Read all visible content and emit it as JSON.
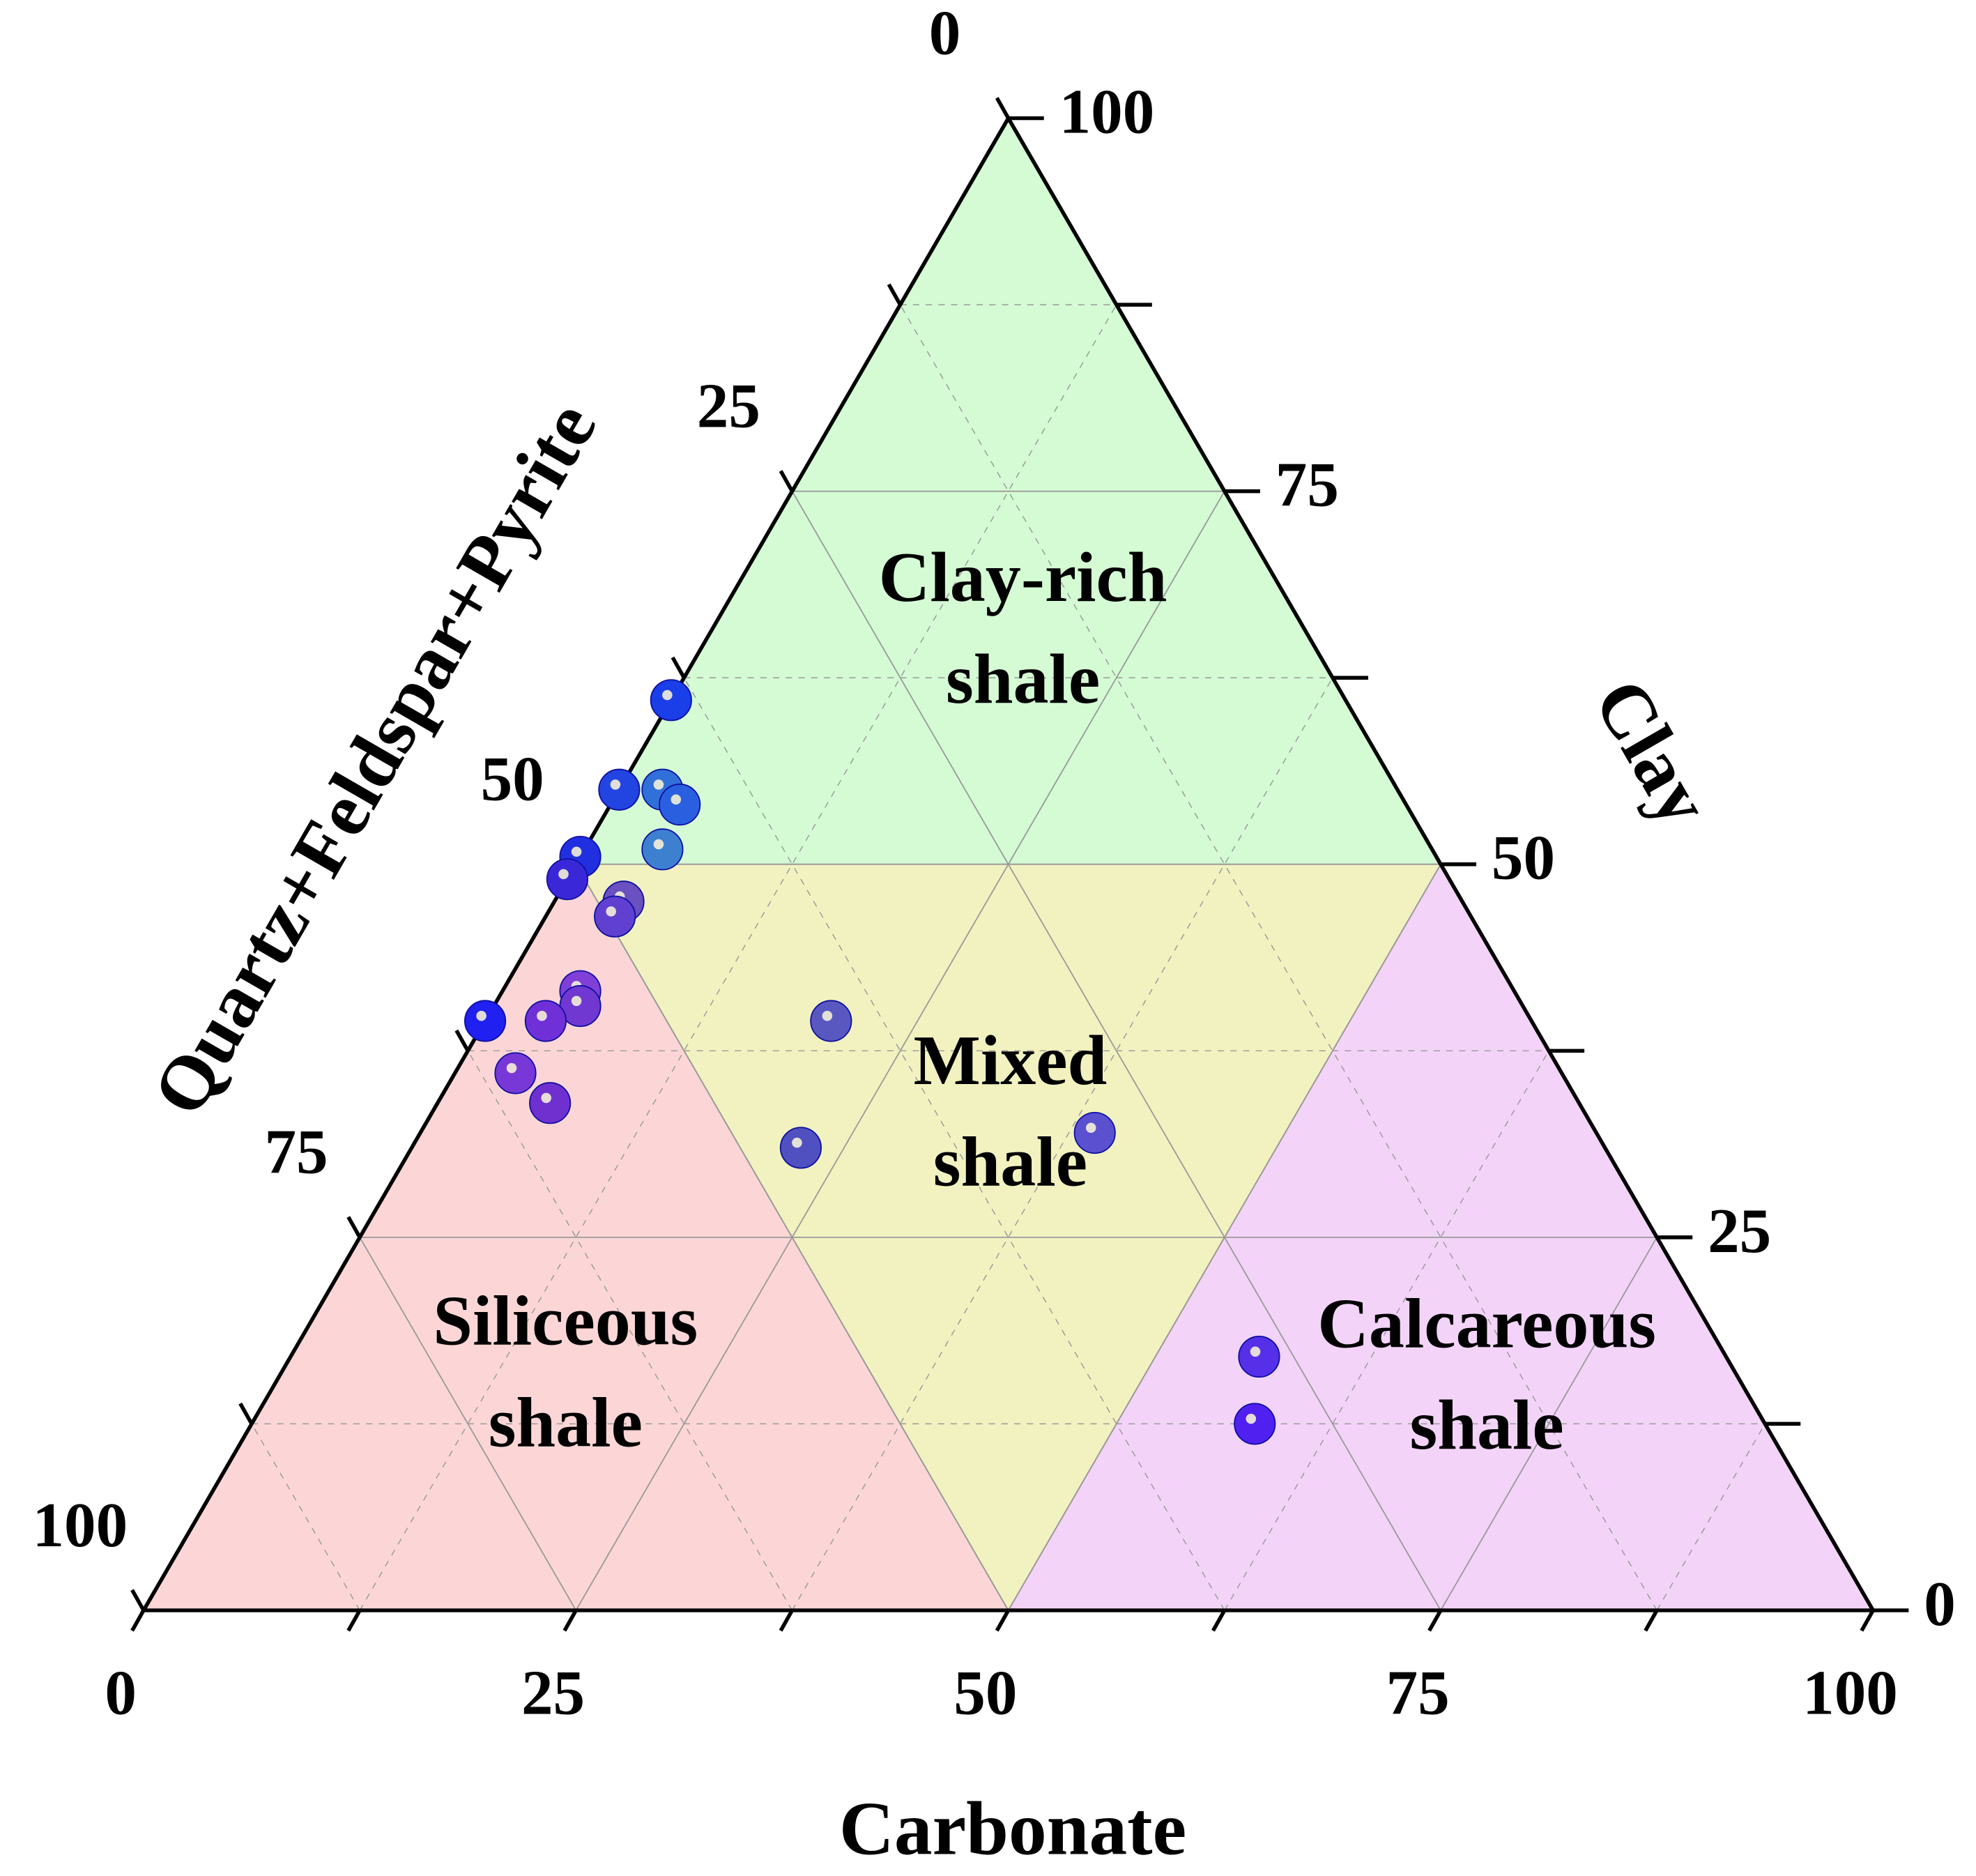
{
  "chart_data": {
    "type": "ternary",
    "axes": {
      "carbonate": {
        "title": "Carbonate",
        "lim": [
          0,
          100
        ],
        "ticks": [
          0,
          25,
          50,
          75,
          100
        ]
      },
      "clay": {
        "title": "Clay",
        "lim": [
          0,
          100
        ],
        "ticks": [
          0,
          25,
          50,
          75,
          100
        ]
      },
      "qfp": {
        "title": "Quartz+Feldspar+Pyrite",
        "lim": [
          0,
          100
        ],
        "ticks": [
          0,
          25,
          50,
          75,
          100
        ]
      }
    },
    "minor_ticks": [
      12.5,
      37.5,
      62.5,
      87.5
    ],
    "grid": true,
    "threshold": 50,
    "regions": [
      {
        "axis": "clay",
        "label": [
          "Clay-rich",
          "shale"
        ],
        "color": "#d4fbd4"
      },
      {
        "axis": "qfp",
        "label": [
          "Siliceous",
          "shale"
        ],
        "color": "#fcd6d6"
      },
      {
        "axis": "carbonate",
        "label": [
          "Calcareous",
          "shale"
        ],
        "color": "#f3d4f8"
      },
      {
        "axis": "mixed",
        "label": [
          "Mixed",
          "shale"
        ],
        "color": "#f2f2c0"
      }
    ],
    "series": [
      {
        "carbonate": [
          0,
          0,
          2.5,
          4,
          4.5,
          0,
          0,
          4,
          4,
          4.5,
          5,
          3.5,
          0,
          3.5,
          6.5,
          20,
          22.5,
          39,
          56,
          58
        ],
        "clay": [
          61,
          55,
          55,
          54,
          51,
          50.5,
          49,
          47.5,
          46.5,
          41.5,
          40.5,
          39.5,
          39.5,
          36,
          34,
          39.5,
          31,
          32,
          17,
          12.5
        ],
        "qfp": [
          39,
          45,
          42.5,
          42,
          44.5,
          49.5,
          51,
          48.5,
          49.5,
          54,
          54.5,
          57,
          60.5,
          60.5,
          59.5,
          40.5,
          46.5,
          29,
          27,
          29.5
        ],
        "colors": [
          "#1a3ee8",
          "#2244e0",
          "#3070d8",
          "#2a60e0",
          "#3d80d0",
          "#2030e0",
          "#3a28d8",
          "#6a50c0",
          "#6040d0",
          "#8040d8",
          "#7038d0",
          "#7030d8",
          "#2020f0",
          "#7838d8",
          "#7030d0",
          "#5858c0",
          "#5050c0",
          "#5a50d0",
          "#5530e8",
          "#5020f0"
        ]
      }
    ]
  }
}
